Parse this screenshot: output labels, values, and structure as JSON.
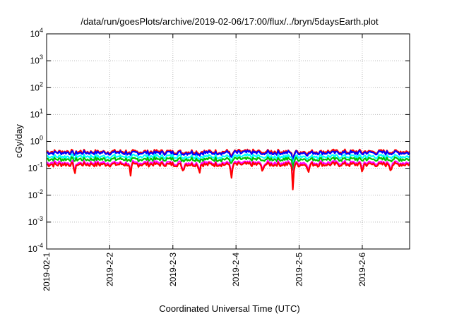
{
  "chart_data": {
    "type": "line",
    "title": "/data/run/goesPlots/archive/2019-02-06/17:00/flux/../bryn/5daysEarth.plot",
    "xlabel": "Coordinated Universal Time (UTC)",
    "ylabel": "cGy/day",
    "yscale": "log",
    "ylim": [
      0.0001,
      10000
    ],
    "xlim": [
      0,
      5.75
    ],
    "grid": true,
    "y_ticks": [
      {
        "base": "10",
        "exp": "-4"
      },
      {
        "base": "10",
        "exp": "-3"
      },
      {
        "base": "10",
        "exp": "-2"
      },
      {
        "base": "10",
        "exp": "-1"
      },
      {
        "base": "10",
        "exp": "0"
      },
      {
        "base": "10",
        "exp": "1"
      },
      {
        "base": "10",
        "exp": "2"
      },
      {
        "base": "10",
        "exp": "3"
      },
      {
        "base": "10",
        "exp": "4"
      }
    ],
    "x_ticks": [
      "2019-02-1",
      "2019-2-2",
      "2019-2-3",
      "2019-2-4",
      "2019-2-5",
      "2019-2-6"
    ],
    "series": [
      {
        "color": "#ff0000",
        "base": 0.42
      },
      {
        "color": "#0000ff",
        "base": 0.38
      },
      {
        "color": "#00ffff",
        "base": 0.28
      },
      {
        "color": "#00c000",
        "base": 0.22
      },
      {
        "color": "#ff00ff",
        "base": 0.16
      },
      {
        "color": "#ff0000",
        "base": 0.14
      }
    ],
    "dips": [
      {
        "x": 0.45,
        "factor": 0.55
      },
      {
        "x": 1.33,
        "factor": 0.4
      },
      {
        "x": 2.16,
        "factor": 0.6
      },
      {
        "x": 2.42,
        "factor": 0.55
      },
      {
        "x": 2.93,
        "factor": 0.3
      },
      {
        "x": 3.42,
        "factor": 0.45
      },
      {
        "x": 3.9,
        "factor": 0.15
      },
      {
        "x": 4.15,
        "factor": 0.55
      },
      {
        "x": 5.0,
        "factor": 0.6
      },
      {
        "x": 5.45,
        "factor": 0.7
      }
    ]
  }
}
